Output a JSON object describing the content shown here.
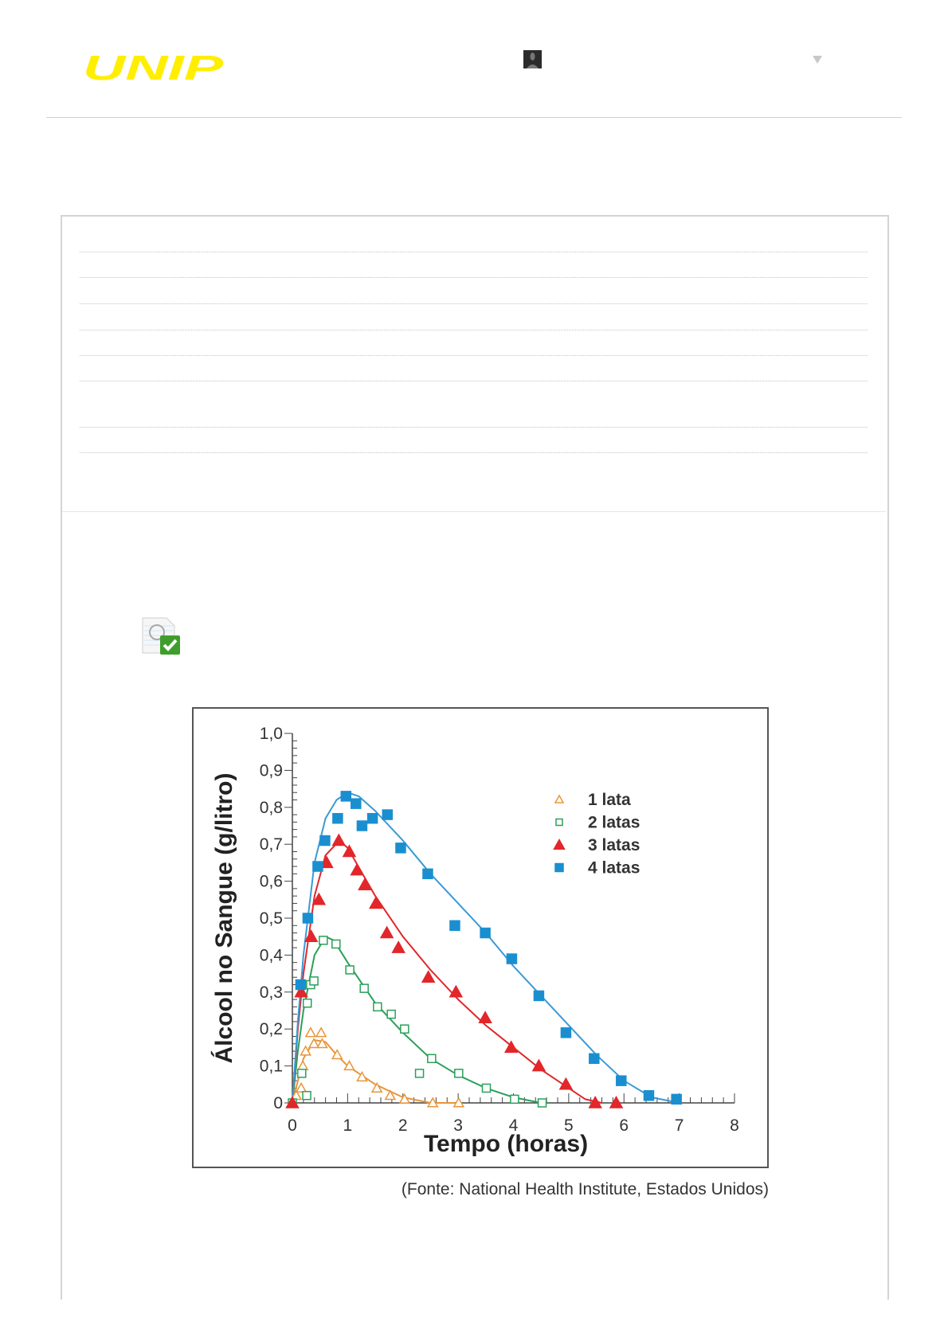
{
  "header": {
    "logo_text": "UNIP",
    "logo_color": "#ffee00",
    "avatar_icon": "user-avatar-icon",
    "menu_icon": "chevron-down-icon"
  },
  "question": {
    "status_icon": "task-completed-check-icon",
    "source": "(Fonte: National Health Institute, Estados Unidos)"
  },
  "chart_data": {
    "type": "scatter",
    "xlabel": "Tempo (horas)",
    "ylabel": "Álcool no Sangue (g/litro)",
    "xlim": [
      0,
      8
    ],
    "ylim": [
      0,
      1.0
    ],
    "xticks": [
      "0",
      "1",
      "2",
      "3",
      "4",
      "5",
      "6",
      "7",
      "8"
    ],
    "yticks": [
      "0",
      "0,1",
      "0,2",
      "0,3",
      "0,4",
      "0,5",
      "0,6",
      "0,7",
      "0,8",
      "0,9",
      "1,0"
    ],
    "grid": false,
    "legend_position": "top-right",
    "series": [
      {
        "name": "1 lata",
        "marker": "triangle-open",
        "color": "#e8953a",
        "points": [
          [
            0,
            0
          ],
          [
            0.07,
            0.02
          ],
          [
            0.16,
            0.04
          ],
          [
            0.19,
            0.1
          ],
          [
            0.24,
            0.14
          ],
          [
            0.33,
            0.19
          ],
          [
            0.39,
            0.16
          ],
          [
            0.52,
            0.19
          ],
          [
            0.54,
            0.16
          ],
          [
            0.81,
            0.13
          ],
          [
            1.03,
            0.1
          ],
          [
            1.26,
            0.07
          ],
          [
            1.53,
            0.04
          ],
          [
            1.77,
            0.02
          ],
          [
            2.03,
            0.01
          ],
          [
            2.54,
            0
          ],
          [
            3.01,
            0
          ]
        ],
        "fit": [
          [
            0,
            0
          ],
          [
            0.1,
            0.06
          ],
          [
            0.2,
            0.12
          ],
          [
            0.4,
            0.17
          ],
          [
            0.6,
            0.165
          ],
          [
            0.8,
            0.13
          ],
          [
            1,
            0.1
          ],
          [
            1.5,
            0.05
          ],
          [
            2,
            0.015
          ],
          [
            2.5,
            0
          ],
          [
            3,
            0
          ]
        ]
      },
      {
        "name": "2 latas",
        "marker": "square-open",
        "color": "#2aa05a",
        "points": [
          [
            0,
            0
          ],
          [
            0.17,
            0.08
          ],
          [
            0.26,
            0.02
          ],
          [
            0.27,
            0.27
          ],
          [
            0.33,
            0.32
          ],
          [
            0.39,
            0.33
          ],
          [
            0.56,
            0.44
          ],
          [
            0.79,
            0.43
          ],
          [
            1.04,
            0.36
          ],
          [
            1.3,
            0.31
          ],
          [
            1.54,
            0.26
          ],
          [
            1.79,
            0.24
          ],
          [
            2.03,
            0.2
          ],
          [
            2.3,
            0.08
          ],
          [
            2.52,
            0.12
          ],
          [
            3.01,
            0.08
          ],
          [
            3.51,
            0.04
          ],
          [
            4.02,
            0.01
          ],
          [
            4.52,
            0
          ]
        ],
        "fit": [
          [
            0,
            0
          ],
          [
            0.1,
            0.14
          ],
          [
            0.2,
            0.25
          ],
          [
            0.4,
            0.4
          ],
          [
            0.6,
            0.45
          ],
          [
            0.75,
            0.44
          ],
          [
            1,
            0.38
          ],
          [
            1.5,
            0.27
          ],
          [
            2,
            0.19
          ],
          [
            2.5,
            0.12
          ],
          [
            3,
            0.075
          ],
          [
            3.5,
            0.04
          ],
          [
            4,
            0.015
          ],
          [
            4.5,
            0
          ]
        ]
      },
      {
        "name": "3 latas",
        "marker": "triangle-filled",
        "color": "#e2262a",
        "points": [
          [
            0,
            0
          ],
          [
            0.16,
            0.3
          ],
          [
            0.34,
            0.45
          ],
          [
            0.48,
            0.55
          ],
          [
            0.62,
            0.65
          ],
          [
            0.84,
            0.71
          ],
          [
            1.03,
            0.68
          ],
          [
            1.17,
            0.63
          ],
          [
            1.31,
            0.59
          ],
          [
            1.51,
            0.54
          ],
          [
            1.71,
            0.46
          ],
          [
            1.92,
            0.42
          ],
          [
            2.46,
            0.34
          ],
          [
            2.96,
            0.3
          ],
          [
            3.49,
            0.23
          ],
          [
            3.96,
            0.15
          ],
          [
            4.46,
            0.1
          ],
          [
            4.95,
            0.05
          ],
          [
            5.48,
            0
          ],
          [
            5.86,
            0
          ]
        ],
        "fit": [
          [
            0,
            0
          ],
          [
            0.1,
            0.2
          ],
          [
            0.2,
            0.35
          ],
          [
            0.4,
            0.56
          ],
          [
            0.6,
            0.67
          ],
          [
            0.85,
            0.71
          ],
          [
            1,
            0.69
          ],
          [
            1.5,
            0.56
          ],
          [
            2,
            0.45
          ],
          [
            2.5,
            0.36
          ],
          [
            3,
            0.28
          ],
          [
            3.5,
            0.21
          ],
          [
            4,
            0.15
          ],
          [
            4.5,
            0.09
          ],
          [
            5,
            0.04
          ],
          [
            5.3,
            0.01
          ],
          [
            5.6,
            0
          ]
        ]
      },
      {
        "name": "4 latas",
        "marker": "square-filled",
        "color": "#1a8fd0",
        "points": [
          [
            0.15,
            0.32
          ],
          [
            0.28,
            0.5
          ],
          [
            0.46,
            0.64
          ],
          [
            0.59,
            0.71
          ],
          [
            0.82,
            0.77
          ],
          [
            0.97,
            0.83
          ],
          [
            1.15,
            0.81
          ],
          [
            1.26,
            0.75
          ],
          [
            1.45,
            0.77
          ],
          [
            1.72,
            0.78
          ],
          [
            1.96,
            0.69
          ],
          [
            2.45,
            0.62
          ],
          [
            2.94,
            0.48
          ],
          [
            3.49,
            0.46
          ],
          [
            3.97,
            0.39
          ],
          [
            4.46,
            0.29
          ],
          [
            4.95,
            0.19
          ],
          [
            5.46,
            0.12
          ],
          [
            5.95,
            0.06
          ],
          [
            6.45,
            0.02
          ],
          [
            6.95,
            0.01
          ]
        ],
        "fit": [
          [
            0,
            0
          ],
          [
            0.1,
            0.22
          ],
          [
            0.2,
            0.4
          ],
          [
            0.4,
            0.65
          ],
          [
            0.6,
            0.77
          ],
          [
            0.8,
            0.82
          ],
          [
            1,
            0.84
          ],
          [
            1.2,
            0.83
          ],
          [
            1.5,
            0.79
          ],
          [
            2,
            0.71
          ],
          [
            2.5,
            0.62
          ],
          [
            3,
            0.54
          ],
          [
            3.5,
            0.46
          ],
          [
            4,
            0.37
          ],
          [
            4.5,
            0.29
          ],
          [
            5,
            0.21
          ],
          [
            5.5,
            0.13
          ],
          [
            6,
            0.06
          ],
          [
            6.5,
            0.015
          ],
          [
            7,
            0
          ]
        ]
      }
    ]
  }
}
